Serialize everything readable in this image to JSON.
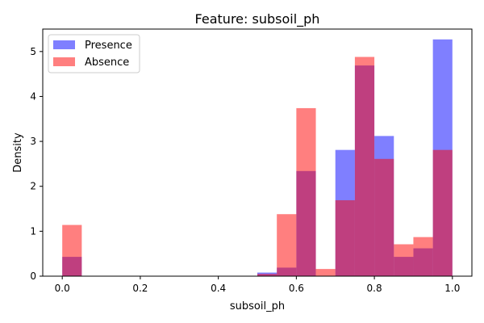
{
  "chart_data": {
    "type": "bar",
    "title": "Feature: subsoil_ph",
    "xlabel": "subsoil_ph",
    "ylabel": "Density",
    "xlim": [
      -0.05,
      1.05
    ],
    "ylim": [
      0,
      5.5
    ],
    "xticks": [
      "0.0",
      "0.2",
      "0.4",
      "0.6",
      "0.8",
      "1.0"
    ],
    "xtick_values": [
      0.0,
      0.2,
      0.4,
      0.6,
      0.8,
      1.0
    ],
    "yticks": [
      "0",
      "1",
      "2",
      "3",
      "4",
      "5"
    ],
    "ytick_values": [
      0,
      1,
      2,
      3,
      4,
      5
    ],
    "grid": false,
    "legend_position": "top-left",
    "bin_edges": [
      0.0,
      0.05,
      0.1,
      0.15,
      0.2,
      0.25,
      0.3,
      0.35,
      0.4,
      0.45,
      0.5,
      0.55,
      0.6,
      0.65,
      0.7,
      0.75,
      0.8,
      0.85,
      0.9,
      0.95,
      1.0
    ],
    "series": [
      {
        "name": "Presence",
        "color": "#0000ff",
        "opacity": 0.5,
        "values": [
          0.43,
          0,
          0,
          0,
          0,
          0,
          0,
          0,
          0,
          0,
          0.08,
          0.19,
          2.34,
          0,
          2.81,
          4.69,
          3.12,
          0.43,
          0.62,
          5.27
        ]
      },
      {
        "name": "Absence",
        "color": "#ff0000",
        "opacity": 0.5,
        "values": [
          1.14,
          0,
          0,
          0,
          0,
          0,
          0,
          0,
          0,
          0,
          0.05,
          1.38,
          3.74,
          0.16,
          1.69,
          4.88,
          2.61,
          0.71,
          0.87,
          2.81
        ]
      }
    ]
  }
}
